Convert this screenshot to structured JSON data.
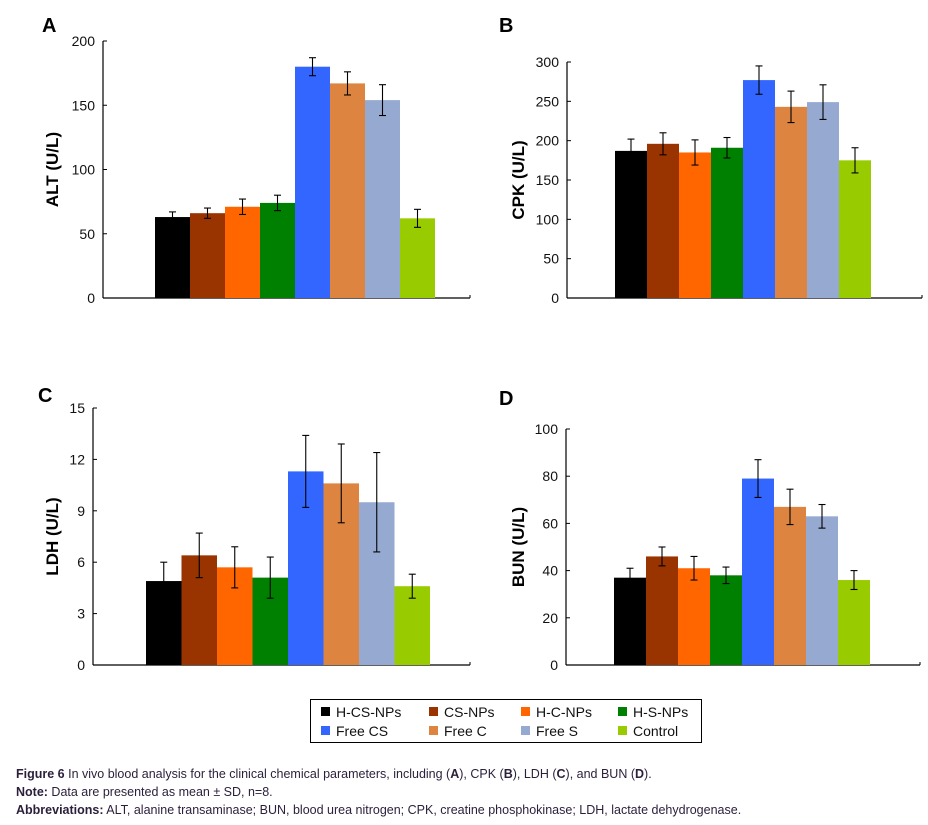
{
  "groups": [
    "H-CS-NPs",
    "CS-NPs",
    "H-C-NPs",
    "H-S-NPs",
    "Free CS",
    "Free C",
    "Free S",
    "Control"
  ],
  "colors": [
    "#000000",
    "#993300",
    "#ff6600",
    "#008000",
    "#3366ff",
    "#dd8441",
    "#96aad1",
    "#99cc00"
  ],
  "chart_data": [
    {
      "panel": "A",
      "type": "bar",
      "ylabel": "ALT (U/L)",
      "ylim": [
        0,
        200
      ],
      "yticks": [
        0,
        50,
        100,
        150,
        200
      ],
      "categories": [
        "H-CS-NPs",
        "CS-NPs",
        "H-C-NPs",
        "H-S-NPs",
        "Free CS",
        "Free C",
        "Free S",
        "Control"
      ],
      "values": [
        63,
        66,
        71,
        74,
        180,
        167,
        154,
        62
      ],
      "errors": [
        4,
        4,
        6,
        6,
        7,
        9,
        12,
        7
      ]
    },
    {
      "panel": "B",
      "type": "bar",
      "ylabel": "CPK (U/L)",
      "ylim": [
        0,
        300
      ],
      "yticks": [
        0,
        50,
        100,
        150,
        200,
        250,
        300
      ],
      "categories": [
        "H-CS-NPs",
        "CS-NPs",
        "H-C-NPs",
        "H-S-NPs",
        "Free CS",
        "Free C",
        "Free S",
        "Control"
      ],
      "values": [
        187,
        196,
        185,
        191,
        277,
        243,
        249,
        175
      ],
      "errors": [
        15,
        14,
        16,
        13,
        18,
        20,
        22,
        16
      ]
    },
    {
      "panel": "C",
      "type": "bar",
      "ylabel": "LDH (U/L)",
      "ylim": [
        0,
        15
      ],
      "yticks": [
        0,
        3,
        6,
        9,
        12,
        15
      ],
      "categories": [
        "H-CS-NPs",
        "CS-NPs",
        "H-C-NPs",
        "H-S-NPs",
        "Free CS",
        "Free C",
        "Free S",
        "Control"
      ],
      "values": [
        4.9,
        6.4,
        5.7,
        5.1,
        11.3,
        10.6,
        9.5,
        4.6
      ],
      "errors": [
        1.1,
        1.3,
        1.2,
        1.2,
        2.1,
        2.3,
        2.9,
        0.7
      ]
    },
    {
      "panel": "D",
      "type": "bar",
      "ylabel": "BUN (U/L)",
      "ylim": [
        0,
        100
      ],
      "yticks": [
        0,
        20,
        40,
        60,
        80,
        100
      ],
      "categories": [
        "H-CS-NPs",
        "CS-NPs",
        "H-C-NPs",
        "H-S-NPs",
        "Free CS",
        "Free C",
        "Free S",
        "Control"
      ],
      "values": [
        37,
        46,
        41,
        38,
        79,
        67,
        63,
        36
      ],
      "errors": [
        4,
        4,
        5,
        3.5,
        8,
        7.5,
        5,
        4
      ]
    }
  ],
  "legend": [
    "H-CS-NPs",
    "CS-NPs",
    "H-C-NPs",
    "H-S-NPs",
    "Free CS",
    "Free C",
    "Free S",
    "Control"
  ],
  "caption": {
    "figure_label": "Figure 6",
    "figure_text_1": " In vivo blood analysis for the clinical chemical parameters, including (",
    "A": "A",
    "t2": "), CPK (",
    "B": "B",
    "t3": "), LDH (",
    "C": "C",
    "t4": "), and BUN (",
    "D": "D",
    "t5": ").",
    "note_label": "Note:",
    "note_text": " Data are presented as mean ± SD, n=8.",
    "abbr_label": "Abbreviations:",
    "abbr_text": " ALT, alanine transaminase; BUN, blood urea nitrogen; CPK, creatine phosphokinase; LDH, lactate dehydrogenase."
  }
}
